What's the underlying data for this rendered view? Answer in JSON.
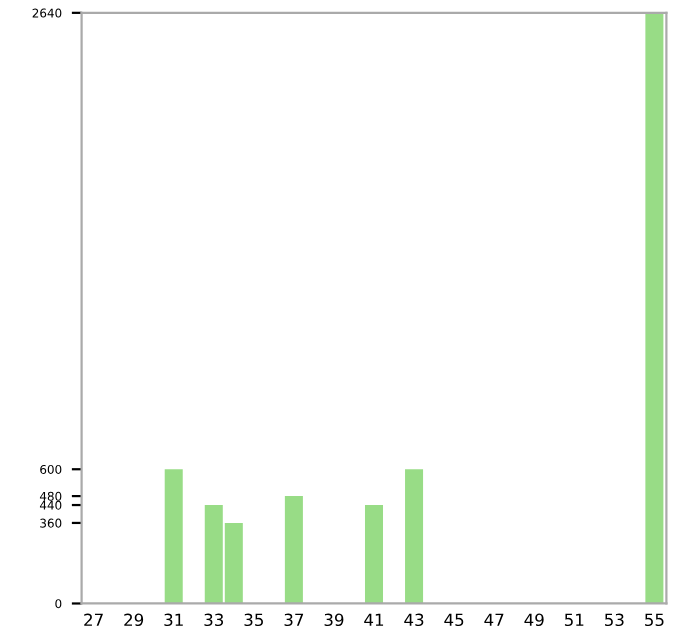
{
  "chart_data": {
    "type": "bar",
    "categories": [
      "27",
      null,
      "29",
      null,
      "31",
      null,
      "33",
      null,
      "35",
      null,
      "37",
      null,
      "39",
      null,
      "41",
      null,
      "43",
      null,
      "45",
      null,
      "47",
      null,
      "49",
      null,
      "51",
      null,
      "53",
      null,
      "55"
    ],
    "values": [
      0,
      0,
      0,
      0,
      600,
      0,
      440,
      360,
      0,
      0,
      480,
      0,
      0,
      0,
      440,
      0,
      600,
      0,
      0,
      0,
      0,
      0,
      0,
      0,
      0,
      0,
      0,
      0,
      2640
    ],
    "color": "#98dc86",
    "ylim": [
      0,
      2640
    ],
    "yticks": [
      0,
      360,
      440,
      480,
      600,
      2640
    ],
    "grid": false
  }
}
